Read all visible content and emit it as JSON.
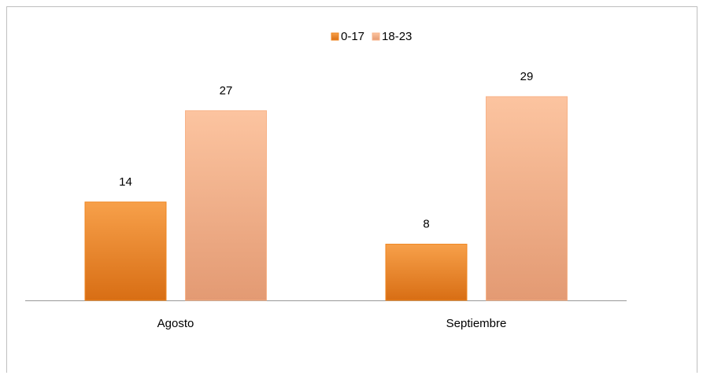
{
  "chart_data": {
    "type": "bar",
    "categories": [
      "Agosto",
      "Septiembre"
    ],
    "series": [
      {
        "name": "0-17",
        "color": "#f0861f",
        "values": [
          14,
          8
        ]
      },
      {
        "name": "18-23",
        "color": "#f8b388",
        "values": [
          27,
          29
        ]
      }
    ],
    "ylim": [
      0,
      30
    ],
    "legend": "top"
  }
}
